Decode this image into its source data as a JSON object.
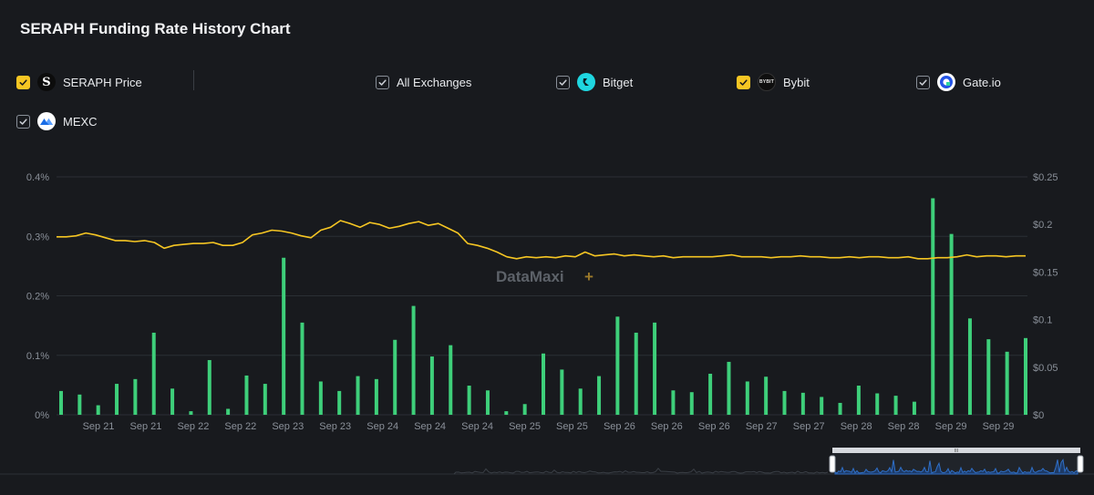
{
  "title": "SERAPH Funding Rate History Chart",
  "legend": [
    {
      "label": "SERAPH Price",
      "checked": true,
      "check_style": "yellow",
      "icon": "seraph-logo-icon",
      "logo_text": "S"
    },
    {
      "label": "All Exchanges",
      "checked": true,
      "check_style": "outline",
      "icon": null
    },
    {
      "label": "Bitget",
      "checked": true,
      "check_style": "outline",
      "icon": "bitget-logo-icon",
      "logo_text": ""
    },
    {
      "label": "Bybit",
      "checked": true,
      "check_style": "yellow",
      "icon": "bybit-logo-icon",
      "logo_text": "BYBIT"
    },
    {
      "label": "Gate.io",
      "checked": true,
      "check_style": "outline",
      "icon": "gateio-logo-icon",
      "logo_text": ""
    },
    {
      "label": "MEXC",
      "checked": true,
      "check_style": "outline",
      "icon": "mexc-logo-icon",
      "logo_text": ""
    }
  ],
  "colors": {
    "background": "#181a1e",
    "grid": "#2b2f35",
    "axis_text": "#8a9099",
    "price_line": "#f6c623",
    "funding_bar": "#3ecf7a",
    "navigator_line": "#2f6fc7",
    "navigator_bg": "#2a2f37",
    "checkbox_yellow": "#f6c623"
  },
  "watermark": {
    "text": "DataMaxi",
    "plus": "+"
  },
  "chart_data": {
    "type": "bar",
    "title": "SERAPH Funding Rate History Chart",
    "x_tick_labels": [
      "Sep 21",
      "Sep 21",
      "Sep 22",
      "Sep 22",
      "Sep 23",
      "Sep 23",
      "Sep 24",
      "Sep 24",
      "Sep 24",
      "Sep 25",
      "Sep 25",
      "Sep 26",
      "Sep 26",
      "Sep 26",
      "Sep 27",
      "Sep 27",
      "Sep 28",
      "Sep 28",
      "Sep 29",
      "Sep 29"
    ],
    "left_axis": {
      "ticks": [
        "0%",
        "0.1%",
        "0.2%",
        "0.3%",
        "0.4%"
      ],
      "range": [
        0,
        0.4
      ],
      "unit": "%"
    },
    "right_axis": {
      "ticks": [
        "$0",
        "$0.05",
        "$0.1",
        "$0.15",
        "$0.2",
        "$0.25"
      ],
      "range": [
        0,
        0.25
      ],
      "unit": "$"
    },
    "grid": true,
    "series": [
      {
        "name": "All Exchanges",
        "kind": "bar",
        "axis": "left",
        "values": [
          0.04,
          0.034,
          0.016,
          0.052,
          0.06,
          0.138,
          0.044,
          0.006,
          0.092,
          0.01,
          0.066,
          0.052,
          0.264,
          0.155,
          0.056,
          0.04,
          0.065,
          0.06,
          0.126,
          0.183,
          0.098,
          0.117,
          0.049,
          0.041,
          0.006,
          0.018,
          0.103,
          0.076,
          0.044,
          0.065,
          0.165,
          0.138,
          0.155,
          0.041,
          0.038,
          0.069,
          0.089,
          0.056,
          0.064,
          0.04,
          0.037,
          0.03,
          0.02,
          0.049,
          0.036,
          0.032,
          0.022,
          0.364,
          0.304,
          0.162,
          0.127,
          0.106,
          0.129
        ]
      },
      {
        "name": "SERAPH Price",
        "kind": "line",
        "axis": "right",
        "values": [
          0.187,
          0.187,
          0.188,
          0.191,
          0.189,
          0.186,
          0.183,
          0.183,
          0.182,
          0.183,
          0.181,
          0.175,
          0.178,
          0.179,
          0.18,
          0.18,
          0.181,
          0.178,
          0.178,
          0.181,
          0.189,
          0.191,
          0.194,
          0.193,
          0.191,
          0.188,
          0.186,
          0.194,
          0.197,
          0.204,
          0.201,
          0.197,
          0.202,
          0.2,
          0.196,
          0.198,
          0.201,
          0.203,
          0.199,
          0.201,
          0.196,
          0.191,
          0.18,
          0.178,
          0.175,
          0.171,
          0.166,
          0.164,
          0.166,
          0.165,
          0.166,
          0.165,
          0.167,
          0.166,
          0.171,
          0.167,
          0.168,
          0.169,
          0.167,
          0.168,
          0.167,
          0.166,
          0.167,
          0.165,
          0.166,
          0.166,
          0.166,
          0.166,
          0.167,
          0.168,
          0.166,
          0.166,
          0.166,
          0.165,
          0.166,
          0.166,
          0.167,
          0.166,
          0.166,
          0.165,
          0.165,
          0.166,
          0.165,
          0.166,
          0.166,
          0.165,
          0.165,
          0.166,
          0.164,
          0.164,
          0.165,
          0.165,
          0.166,
          0.168,
          0.166,
          0.167,
          0.167,
          0.166,
          0.167,
          0.167
        ]
      }
    ],
    "navigator": {
      "handle_label": "III"
    }
  }
}
